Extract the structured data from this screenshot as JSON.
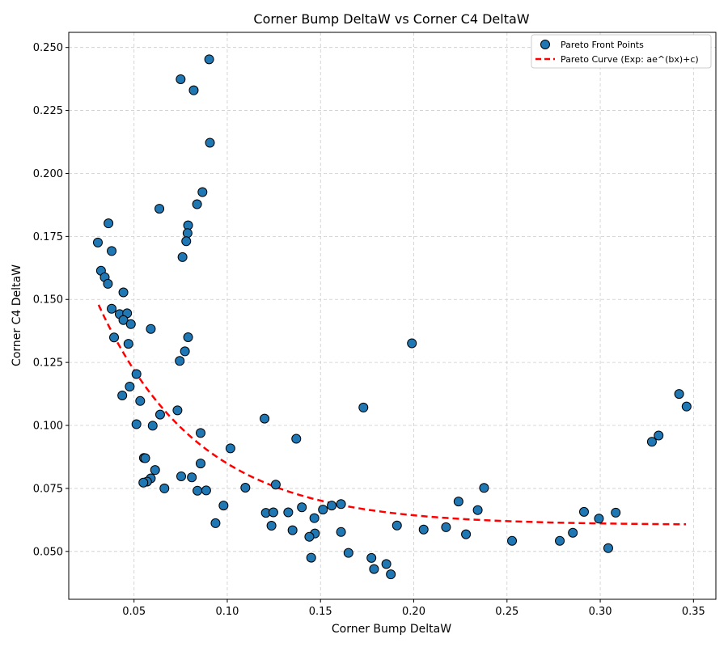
{
  "chart_data": {
    "type": "scatter",
    "title": "Corner Bump DeltaW vs Corner C4 DeltaW",
    "xlabel": "Corner Bump DeltaW",
    "ylabel": "Corner C4 DeltaW",
    "xlim": [
      0.015,
      0.362
    ],
    "ylim": [
      0.031,
      0.256
    ],
    "xticks": [
      0.05,
      0.1,
      0.15,
      0.2,
      0.25,
      0.3,
      0.35
    ],
    "xtick_labels": [
      "0.05",
      "0.10",
      "0.15",
      "0.20",
      "0.25",
      "0.30",
      "0.35"
    ],
    "yticks": [
      0.05,
      0.075,
      0.1,
      0.125,
      0.15,
      0.175,
      0.2,
      0.225,
      0.25
    ],
    "ytick_labels": [
      "0.050",
      "0.075",
      "0.100",
      "0.125",
      "0.150",
      "0.175",
      "0.200",
      "0.225",
      "0.250"
    ],
    "grid": true,
    "legend_position": "top-right",
    "colors": {
      "points": "#1f77b4",
      "curve": "#ff0000"
    },
    "series": [
      {
        "name": "Pareto Front Points",
        "kind": "scatter",
        "points": [
          [
            0.0903,
            0.2453
          ],
          [
            0.075,
            0.2374
          ],
          [
            0.082,
            0.233
          ],
          [
            0.0907,
            0.2122
          ],
          [
            0.0867,
            0.1926
          ],
          [
            0.0838,
            0.1878
          ],
          [
            0.0636,
            0.186
          ],
          [
            0.0363,
            0.1802
          ],
          [
            0.079,
            0.1794
          ],
          [
            0.0787,
            0.1763
          ],
          [
            0.078,
            0.1731
          ],
          [
            0.0306,
            0.1726
          ],
          [
            0.038,
            0.1692
          ],
          [
            0.076,
            0.1668
          ],
          [
            0.0323,
            0.1614
          ],
          [
            0.0343,
            0.1588
          ],
          [
            0.036,
            0.1562
          ],
          [
            0.0443,
            0.1528
          ],
          [
            0.038,
            0.1463
          ],
          [
            0.0423,
            0.1442
          ],
          [
            0.0463,
            0.1445
          ],
          [
            0.0443,
            0.1418
          ],
          [
            0.0483,
            0.1402
          ],
          [
            0.059,
            0.1383
          ],
          [
            0.0393,
            0.1349
          ],
          [
            0.079,
            0.135
          ],
          [
            0.047,
            0.1324
          ],
          [
            0.0773,
            0.1294
          ],
          [
            0.0745,
            0.1256
          ],
          [
            0.199,
            0.1326
          ],
          [
            0.0513,
            0.1204
          ],
          [
            0.0477,
            0.1154
          ],
          [
            0.0437,
            0.1119
          ],
          [
            0.0533,
            0.1097
          ],
          [
            0.173,
            0.1071
          ],
          [
            0.0733,
            0.106
          ],
          [
            0.064,
            0.1043
          ],
          [
            0.12,
            0.1027
          ],
          [
            0.0513,
            0.1005
          ],
          [
            0.06,
            0.0999
          ],
          [
            0.0857,
            0.097
          ],
          [
            0.137,
            0.0947
          ],
          [
            0.1017,
            0.0909
          ],
          [
            0.0553,
            0.0871
          ],
          [
            0.056,
            0.087
          ],
          [
            0.0857,
            0.0849
          ],
          [
            0.0613,
            0.0823
          ],
          [
            0.0753,
            0.0798
          ],
          [
            0.081,
            0.0794
          ],
          [
            0.059,
            0.079
          ],
          [
            0.057,
            0.0777
          ],
          [
            0.055,
            0.0773
          ],
          [
            0.126,
            0.0765
          ],
          [
            0.0663,
            0.075
          ],
          [
            0.1097,
            0.0753
          ],
          [
            0.084,
            0.0741
          ],
          [
            0.0887,
            0.0742
          ],
          [
            0.2377,
            0.0752
          ],
          [
            0.098,
            0.0682
          ],
          [
            0.14,
            0.0675
          ],
          [
            0.1513,
            0.0666
          ],
          [
            0.156,
            0.0682
          ],
          [
            0.161,
            0.0688
          ],
          [
            0.1207,
            0.0653
          ],
          [
            0.1247,
            0.0655
          ],
          [
            0.1327,
            0.0655
          ],
          [
            0.224,
            0.0698
          ],
          [
            0.2343,
            0.0664
          ],
          [
            0.2913,
            0.0657
          ],
          [
            0.3083,
            0.0654
          ],
          [
            0.0937,
            0.0612
          ],
          [
            0.1237,
            0.0602
          ],
          [
            0.1467,
            0.0632
          ],
          [
            0.2993,
            0.063
          ],
          [
            0.135,
            0.0584
          ],
          [
            0.147,
            0.0571
          ],
          [
            0.144,
            0.0558
          ],
          [
            0.161,
            0.0577
          ],
          [
            0.191,
            0.0603
          ],
          [
            0.2053,
            0.0587
          ],
          [
            0.2173,
            0.0596
          ],
          [
            0.228,
            0.0568
          ],
          [
            0.2527,
            0.0542
          ],
          [
            0.2783,
            0.0542
          ],
          [
            0.2853,
            0.0574
          ],
          [
            0.3043,
            0.0513
          ],
          [
            0.145,
            0.0475
          ],
          [
            0.165,
            0.0494
          ],
          [
            0.1773,
            0.0474
          ],
          [
            0.1787,
            0.043
          ],
          [
            0.1853,
            0.045
          ],
          [
            0.1877,
            0.0409
          ],
          [
            0.3277,
            0.0935
          ],
          [
            0.3313,
            0.096
          ],
          [
            0.3423,
            0.1125
          ],
          [
            0.3463,
            0.1075
          ]
        ]
      },
      {
        "name": "Pareto Curve (Exp: ae^(bx)+c)",
        "kind": "line",
        "style": "dashed",
        "x_range": [
          0.031,
          0.346
        ],
        "fit": {
          "a": 0.155,
          "b": -18.5,
          "c": 0.0605
        }
      }
    ]
  }
}
